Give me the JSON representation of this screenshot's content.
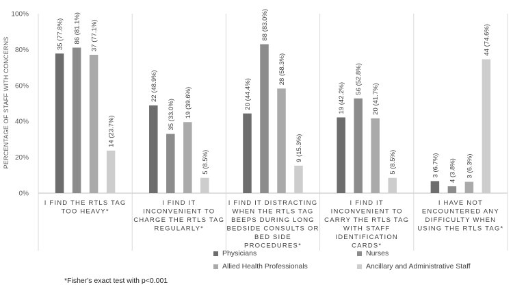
{
  "chart_data": {
    "type": "bar",
    "ylabel": "PERCENTAGE OF STAFF WITH CONCERNS",
    "ylim": [
      0,
      100
    ],
    "yticks": [
      "0%",
      "20%",
      "40%",
      "60%",
      "80%",
      "100%"
    ],
    "grid": false,
    "legend_position": "bottom",
    "categories": [
      [
        "I FIND THE RTLS TAG",
        "TOO HEAVY*"
      ],
      [
        "I FIND IT",
        "INCONVENIENT TO",
        "CHARGE THE RTLS TAG",
        "REGULARLY*"
      ],
      [
        "I FIND IT DISTRACTING",
        "WHEN THE RTLS TAG",
        "BEEPS DURING LONG",
        "BEDSIDE CONSULTS OR",
        "BED SIDE",
        "PROCEDURES*"
      ],
      [
        "I FIND IT",
        "INCONVENIENT TO",
        "CARRY THE RTLS TAG",
        "WITH STAFF",
        "IDENTIFICATION",
        "CARDS*"
      ],
      [
        "I HAVE NOT",
        "ENCOUNTERED ANY",
        "DIFFICULTY WHEN",
        "USING THE RTLS TAG*"
      ]
    ],
    "series": [
      {
        "name": "Physicians",
        "color": "#6d6d6d",
        "values": [
          77.8,
          48.9,
          44.4,
          42.2,
          6.7
        ],
        "labels": [
          "35 (77.8%)",
          "22 (48.9%)",
          "20 (44.4%)",
          "19 (42.2%)",
          "3 (6.7%)"
        ]
      },
      {
        "name": "Nurses",
        "color": "#8c8c8c",
        "values": [
          81.1,
          33.0,
          83.0,
          52.8,
          3.8
        ],
        "labels": [
          "86 (81.1%)",
          "35 (33.0%)",
          "88 (83.0%)",
          "56 (52.8%)",
          "4 (3.8%)"
        ]
      },
      {
        "name": "Allied Health Professionals",
        "color": "#aaaaaa",
        "values": [
          77.1,
          39.6,
          58.3,
          41.7,
          6.3
        ],
        "labels": [
          "37 (77.1%)",
          "19 (39.6%)",
          "28 (58.3%)",
          "20 (41.7%)",
          "3 (6.3%)"
        ]
      },
      {
        "name": "Ancillary and Administrative Staff",
        "color": "#cdcdcd",
        "values": [
          23.7,
          8.5,
          15.3,
          8.5,
          74.6
        ],
        "labels": [
          "14 (23.7%)",
          "5 (8.5%)",
          "9 (15.3%)",
          "5 (8.5%)",
          "44 (74.6%)"
        ]
      }
    ]
  },
  "footnote": "*Fisher's exact test with p<0.001"
}
